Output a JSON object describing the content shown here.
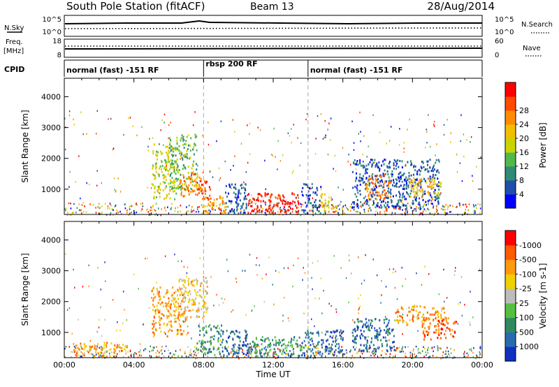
{
  "header": {
    "station": "South Pole Station (fitACF)",
    "beam": "Beam 13",
    "date": "28/Aug/2014"
  },
  "strip_nsky": {
    "left_label": "N.Sky",
    "right_label": "N.Search",
    "left_ticks": [
      "10^5",
      "10^0"
    ],
    "right_ticks": [
      "10^5",
      "10^0"
    ]
  },
  "strip_freq": {
    "left_label_1": "Freq.",
    "left_label_2": "[MHz]",
    "right_label": "Nave",
    "left_ticks": [
      "18",
      "8"
    ],
    "right_ticks": [
      "60",
      "0"
    ]
  },
  "cpid": {
    "label": "CPID",
    "segments": [
      {
        "label": "normal (fast) -151 RF",
        "start_h": 0,
        "end_h": 8
      },
      {
        "label": "rbsp 200 RF",
        "start_h": 8,
        "end_h": 14
      },
      {
        "label": "normal (fast) -151 RF",
        "start_h": 14,
        "end_h": 24
      }
    ]
  },
  "chart_data": [
    {
      "type": "heatmap",
      "panel": "power",
      "xlabel": "",
      "ylabel": "Slant Range [km]",
      "xlim": [
        0,
        24
      ],
      "ylim": [
        180,
        4600
      ],
      "yticks": [
        1000,
        2000,
        3000,
        4000
      ],
      "colorbar": {
        "label": "Power [dB]",
        "ticks": [
          "4",
          "8",
          "12",
          "16",
          "20",
          "24",
          "28"
        ],
        "colors": [
          "#0000ff",
          "#1f4fa8",
          "#2f8a78",
          "#52b84a",
          "#c8d400",
          "#f0c000",
          "#ff8c00",
          "#ff4a00",
          "#ff0000"
        ]
      },
      "regions": [
        {
          "t0": 5.0,
          "t1": 6.4,
          "r0": 700,
          "r1": 2500,
          "level": 4
        },
        {
          "t0": 6.0,
          "t1": 7.6,
          "r0": 1000,
          "r1": 2800,
          "level": 3
        },
        {
          "t0": 6.6,
          "t1": 7.9,
          "r0": 800,
          "r1": 1600,
          "level": 6
        },
        {
          "t0": 7.6,
          "t1": 8.4,
          "r0": 700,
          "r1": 1400,
          "level": 7
        },
        {
          "t0": 8.0,
          "t1": 9.2,
          "r0": 250,
          "r1": 800,
          "level": 6
        },
        {
          "t0": 9.2,
          "t1": 10.5,
          "r0": 250,
          "r1": 1200,
          "level": 1
        },
        {
          "t0": 10.5,
          "t1": 13.6,
          "r0": 250,
          "r1": 900,
          "level": 8
        },
        {
          "t0": 13.6,
          "t1": 14.7,
          "r0": 250,
          "r1": 1200,
          "level": 1
        },
        {
          "t0": 14.7,
          "t1": 15.6,
          "r0": 300,
          "r1": 900,
          "level": 5
        },
        {
          "t0": 16.5,
          "t1": 21.5,
          "r0": 400,
          "r1": 2000,
          "level": 1
        },
        {
          "t0": 17.3,
          "t1": 18.8,
          "r0": 700,
          "r1": 1500,
          "level": 6
        },
        {
          "t0": 19.8,
          "t1": 21.6,
          "r0": 700,
          "r1": 1400,
          "level": 5
        }
      ]
    },
    {
      "type": "heatmap",
      "panel": "velocity",
      "xlabel": "Time UT",
      "ylabel": "Slant Range [km]",
      "xlim": [
        0,
        24
      ],
      "ylim": [
        180,
        4600
      ],
      "xticks": [
        "00:00",
        "04:00",
        "08:00",
        "12:00",
        "16:00",
        "20:00",
        "00:00"
      ],
      "yticks": [
        1000,
        2000,
        3000,
        4000
      ],
      "colorbar": {
        "label": "Velocity [m s-1]",
        "ticks": [
          "1000",
          "500",
          "100",
          "25",
          "-25",
          "-100",
          "-500",
          "-1000"
        ],
        "colors": [
          "#1030c0",
          "#2a6ab0",
          "#2f8a60",
          "#55c040",
          "#bdbdbd",
          "#f0d000",
          "#ff9a10",
          "#ff5a00",
          "#ff0000"
        ]
      },
      "regions": [
        {
          "t0": 5.0,
          "t1": 7.0,
          "r0": 900,
          "r1": 2500,
          "level": 6
        },
        {
          "t0": 6.5,
          "t1": 8.2,
          "r0": 1500,
          "r1": 2800,
          "level": 5
        },
        {
          "t0": 7.6,
          "t1": 9.0,
          "r0": 300,
          "r1": 1300,
          "level": 2
        },
        {
          "t0": 9.0,
          "t1": 10.5,
          "r0": 250,
          "r1": 1100,
          "level": 1
        },
        {
          "t0": 10.5,
          "t1": 13.6,
          "r0": 250,
          "r1": 900,
          "level": 2
        },
        {
          "t0": 13.6,
          "t1": 16.0,
          "r0": 250,
          "r1": 1100,
          "level": 1
        },
        {
          "t0": 16.5,
          "t1": 19.0,
          "r0": 400,
          "r1": 1500,
          "level": 1
        },
        {
          "t0": 19.0,
          "t1": 21.8,
          "r0": 1300,
          "r1": 1900,
          "level": 6
        },
        {
          "t0": 20.5,
          "t1": 22.5,
          "r0": 800,
          "r1": 1500,
          "level": 7
        },
        {
          "t0": 0.6,
          "t1": 3.6,
          "r0": 250,
          "r1": 700,
          "level": 6
        }
      ]
    }
  ]
}
